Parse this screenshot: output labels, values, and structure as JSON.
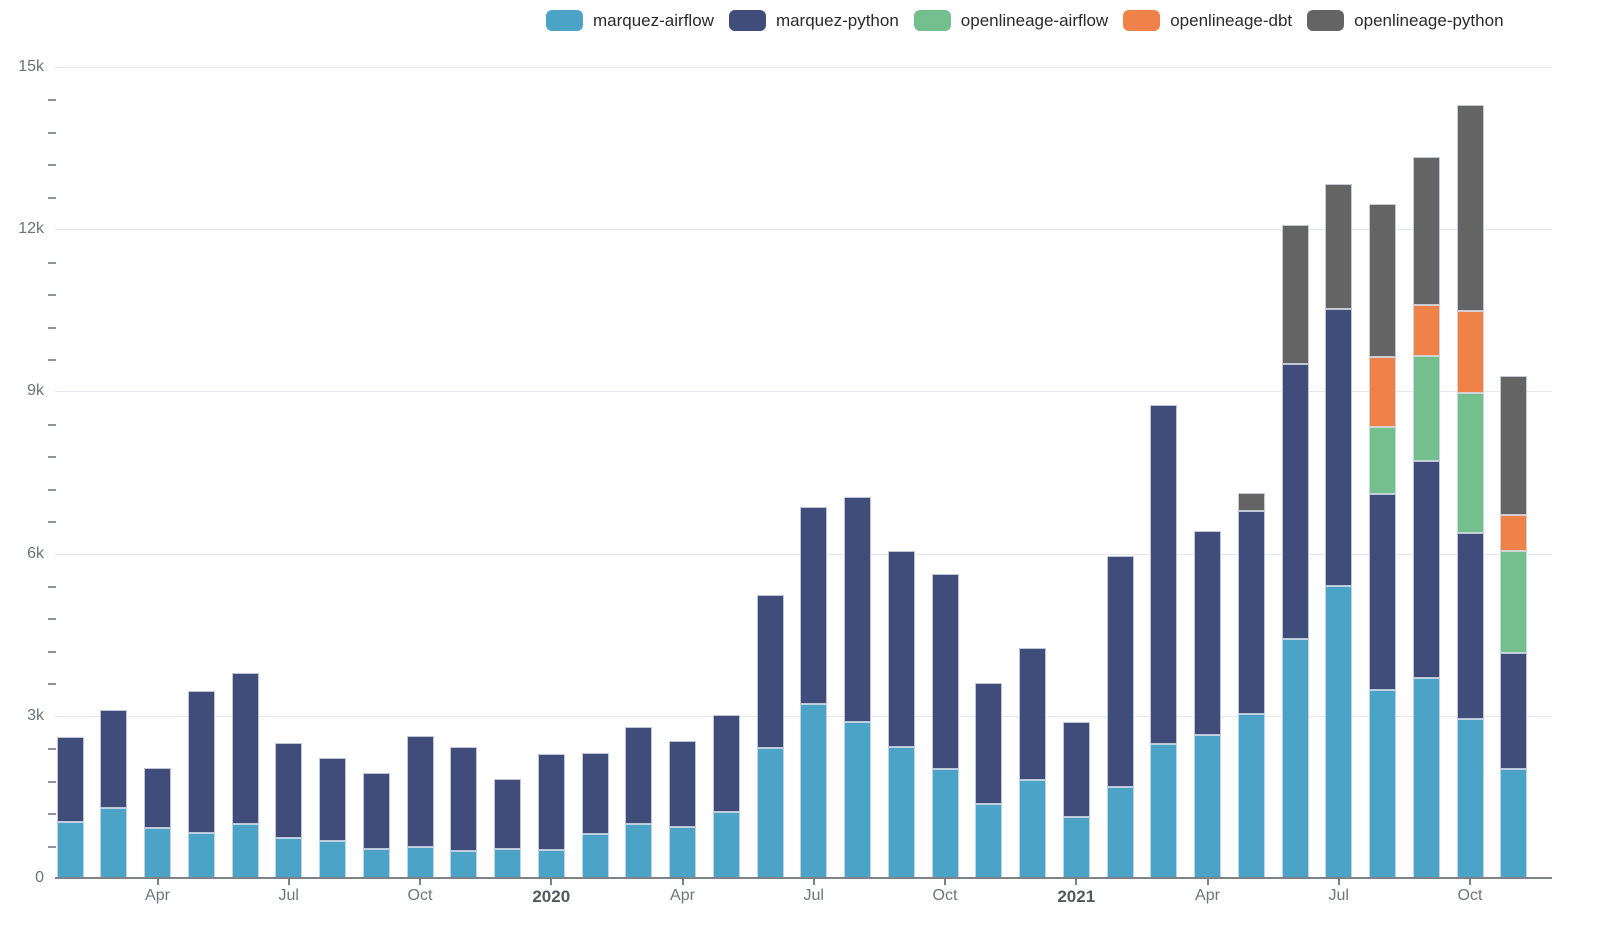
{
  "chart_data": {
    "type": "bar",
    "stacked": true,
    "title": "",
    "xlabel": "",
    "ylabel": "",
    "ylim": [
      0,
      15000
    ],
    "grid": true,
    "legend_position": "top",
    "y_ticks": [
      {
        "value": 0,
        "label": "0"
      },
      {
        "value": 3000,
        "label": "3k"
      },
      {
        "value": 6000,
        "label": "6k"
      },
      {
        "value": 9000,
        "label": "9k"
      },
      {
        "value": 12000,
        "label": "12k"
      },
      {
        "value": 15000,
        "label": "15k"
      }
    ],
    "y_minor_interval": 600,
    "x_ticks": [
      {
        "index": 2,
        "label": "Apr",
        "bold": false
      },
      {
        "index": 5,
        "label": "Jul",
        "bold": false
      },
      {
        "index": 8,
        "label": "Oct",
        "bold": false
      },
      {
        "index": 11,
        "label": "2020",
        "bold": true
      },
      {
        "index": 14,
        "label": "Apr",
        "bold": false
      },
      {
        "index": 17,
        "label": "Jul",
        "bold": false
      },
      {
        "index": 20,
        "label": "Oct",
        "bold": false
      },
      {
        "index": 23,
        "label": "2021",
        "bold": true
      },
      {
        "index": 26,
        "label": "Apr",
        "bold": false
      },
      {
        "index": 29,
        "label": "Jul",
        "bold": false
      },
      {
        "index": 32,
        "label": "Oct",
        "bold": false
      }
    ],
    "categories": [
      "2019-02",
      "2019-03",
      "2019-04",
      "2019-05",
      "2019-06",
      "2019-07",
      "2019-08",
      "2019-09",
      "2019-10",
      "2019-11",
      "2019-12",
      "2020-01",
      "2020-02",
      "2020-03",
      "2020-04",
      "2020-05",
      "2020-06",
      "2020-07",
      "2020-08",
      "2020-09",
      "2020-10",
      "2020-11",
      "2020-12",
      "2021-01",
      "2021-02",
      "2021-03",
      "2021-04",
      "2021-05",
      "2021-06",
      "2021-07",
      "2021-08",
      "2021-09",
      "2021-10",
      "2021-11"
    ],
    "series": [
      {
        "name": "marquez-airflow",
        "color": "#4ba3c7",
        "values": [
          1040,
          1300,
          920,
          830,
          1000,
          745,
          680,
          530,
          580,
          505,
          540,
          525,
          820,
          1005,
          935,
          1225,
          2400,
          3210,
          2890,
          2415,
          2015,
          1370,
          1815,
          1135,
          1675,
          2470,
          2645,
          3025,
          4420,
          5405,
          3475,
          3690,
          2935,
          2010
        ]
      },
      {
        "name": "marquez-python",
        "color": "#404c7a",
        "values": [
          1560,
          1810,
          1120,
          2630,
          2800,
          1760,
          1535,
          1405,
          2045,
          1910,
          1295,
          1775,
          1500,
          1790,
          1600,
          1790,
          2835,
          3645,
          4160,
          3630,
          3605,
          2230,
          2445,
          1755,
          4275,
          6275,
          3775,
          3765,
          5085,
          5115,
          3635,
          4015,
          3440,
          2145
        ]
      },
      {
        "name": "openlineage-airflow",
        "color": "#73bf8e",
        "values": [
          0,
          0,
          0,
          0,
          0,
          0,
          0,
          0,
          0,
          0,
          0,
          0,
          0,
          0,
          0,
          0,
          0,
          0,
          0,
          0,
          0,
          0,
          0,
          0,
          0,
          0,
          0,
          0,
          0,
          0,
          1230,
          1950,
          2600,
          1890
        ]
      },
      {
        "name": "openlineage-dbt",
        "color": "#ee8249",
        "values": [
          0,
          0,
          0,
          0,
          0,
          0,
          0,
          0,
          0,
          0,
          0,
          0,
          0,
          0,
          0,
          0,
          0,
          0,
          0,
          0,
          0,
          0,
          0,
          0,
          0,
          0,
          0,
          0,
          0,
          0,
          1305,
          935,
          1510,
          665
        ]
      },
      {
        "name": "openlineage-python",
        "color": "#646464",
        "values": [
          0,
          0,
          0,
          0,
          0,
          0,
          0,
          0,
          0,
          0,
          0,
          0,
          0,
          0,
          0,
          0,
          0,
          0,
          0,
          0,
          0,
          0,
          0,
          0,
          0,
          0,
          0,
          340,
          2575,
          2320,
          2820,
          2740,
          3815,
          2570
        ]
      }
    ]
  },
  "layout_colors": {
    "gridline": "#e2e7f1",
    "axis_line": "#7d8287",
    "tick_text": "#6d727a",
    "bold_tick_text": "#54585f",
    "legend_text": "#2b2b2b",
    "background": "#ffffff"
  }
}
